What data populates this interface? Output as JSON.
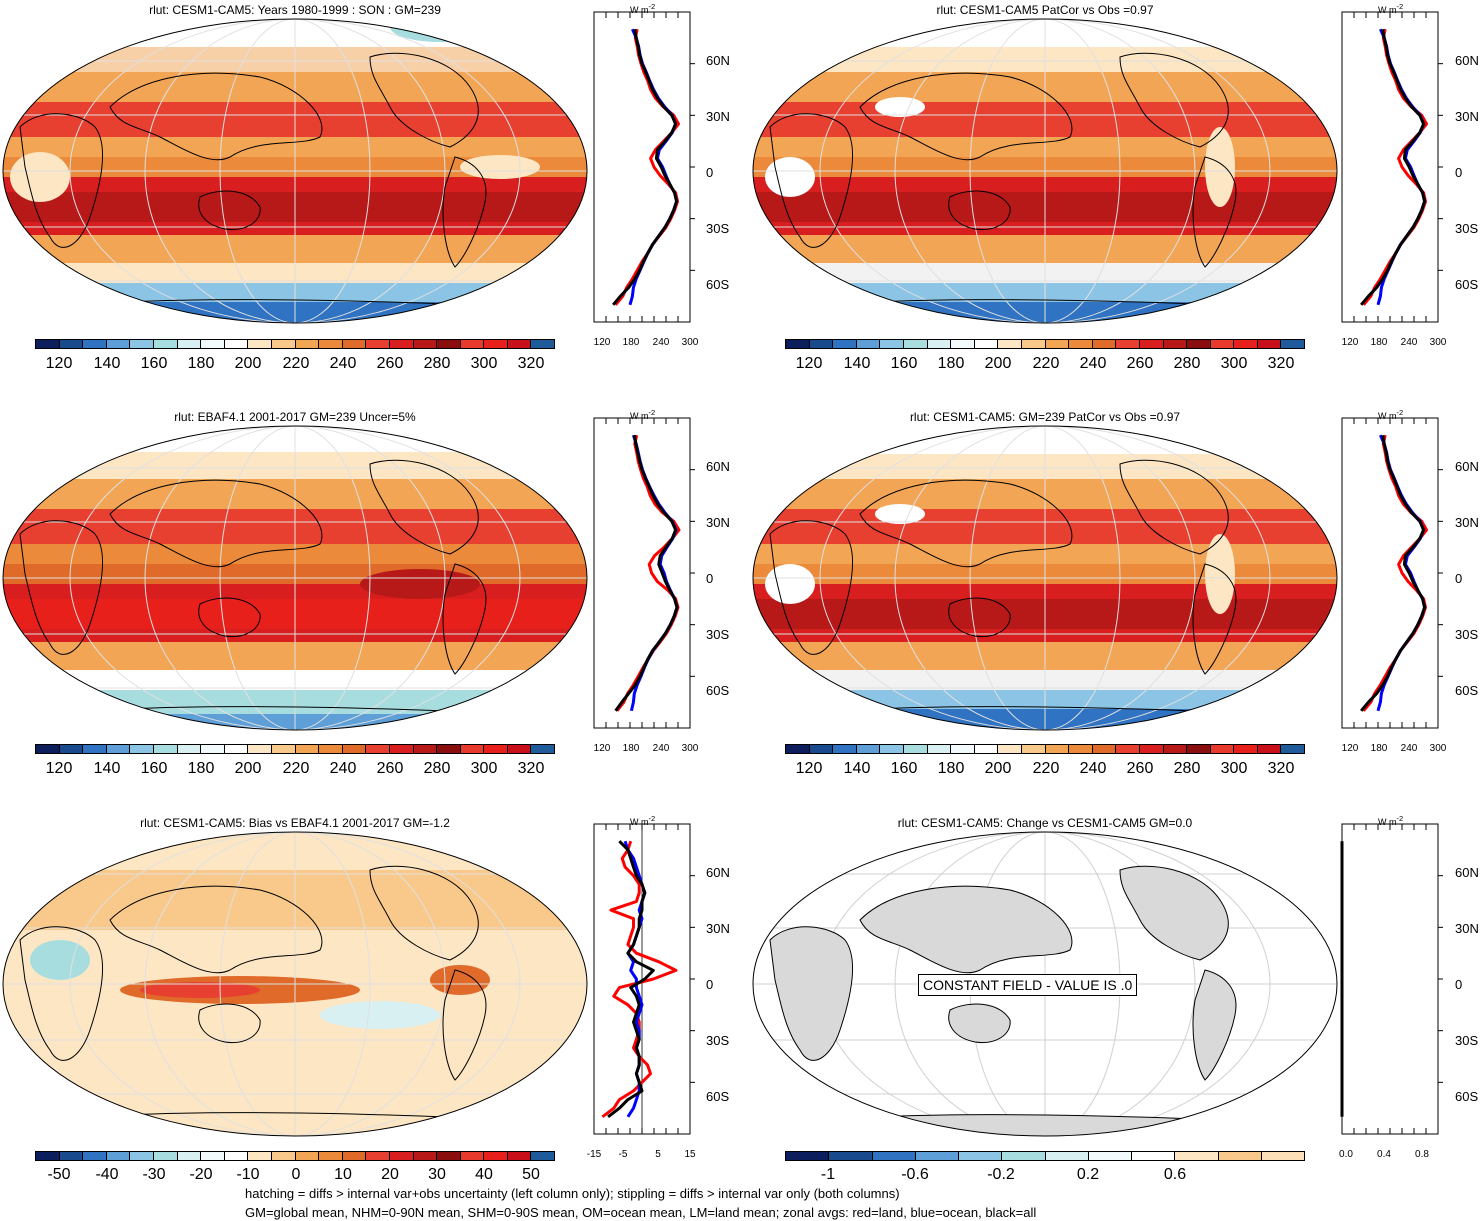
{
  "panels": [
    {
      "title": "rlut: CESM1-CAM5: Years 1980-1999 : SON : GM=239"
    },
    {
      "title": "rlut: CESM1-CAM5 PatCor vs Obs =0.97"
    },
    {
      "title": "rlut: EBAF4.1 2001-2017 GM=239 Uncer=5%"
    },
    {
      "title": "rlut: CESM1-CAM5: GM=239 PatCor vs Obs =0.97"
    },
    {
      "title": "rlut: CESM1-CAM5: Bias vs EBAF4.1 2001-2017  GM=-1.2"
    },
    {
      "title": "rlut: CESM1-CAM5: Change vs CESM1-CAM5 GM=0.0"
    }
  ],
  "colorbars": {
    "abs": {
      "colors": [
        "#0c1f5c",
        "#1a4a8e",
        "#2f73c2",
        "#5e9fd8",
        "#8cc4e6",
        "#a8dde0",
        "#d8f0f2",
        "#f2fafb",
        "#ffffff",
        "#fce6c4",
        "#f8c98a",
        "#f2a555",
        "#ea8a3a",
        "#e06a2a",
        "#e84030",
        "#d81e1e",
        "#b71818",
        "#8a0e0e",
        "#e83a2c",
        "#e8201c",
        "#c8101a",
        "#1f5a9a"
      ],
      "labels": [
        "120",
        "140",
        "160",
        "180",
        "200",
        "220",
        "240",
        "260",
        "280",
        "300",
        "320"
      ]
    },
    "bias": {
      "colors": [
        "#0c1f5c",
        "#1a4a8e",
        "#2f73c2",
        "#5e9fd8",
        "#8cc4e6",
        "#a8dde0",
        "#d8f0f2",
        "#f2fafb",
        "#ffffff",
        "#fce6c4",
        "#f8c98a",
        "#f2a555",
        "#ea8a3a",
        "#e06a2a",
        "#e84030",
        "#d81e1e",
        "#b71818",
        "#8a0e0e",
        "#e83a2c",
        "#e8201c",
        "#c8101a",
        "#1f5a9a"
      ],
      "labels": [
        "-50",
        "-40",
        "-30",
        "-20",
        "-10",
        "0",
        "10",
        "20",
        "30",
        "40",
        "50"
      ]
    },
    "change": {
      "colors": [
        "#0c1f5c",
        "#1a4a8e",
        "#2f73c2",
        "#5e9fd8",
        "#8cc4e6",
        "#a8dde0",
        "#d8f0f2",
        "#f2fafb",
        "#ffffff",
        "#fce6c4",
        "#f8c98a",
        "#fce0b8"
      ],
      "labels": [
        "-1",
        "-0.6",
        "-0.2",
        "0.2",
        "0.6"
      ]
    }
  },
  "zonal": {
    "unit": "W m",
    "unit_sup": "-2",
    "lat_labels": [
      "60N",
      "30N",
      "0",
      "30S",
      "60S"
    ],
    "abs_x_labels": [
      "120",
      "180",
      "240",
      "300"
    ],
    "bias_x_labels": [
      "-15",
      "-5",
      "5",
      "15"
    ],
    "change_x_labels": [
      "0.0",
      "0.4",
      "0.8"
    ]
  },
  "chart_data": [
    {
      "type": "line",
      "title": "rlut: CESM1-CAM5: Years 1980-1999 : SON : GM=239 (zonal avg)",
      "xlim": [
        100,
        300
      ],
      "ylim": [
        -90,
        90
      ],
      "y": [
        -80,
        -75,
        -70,
        -65,
        -60,
        -55,
        -50,
        -45,
        -40,
        -35,
        -30,
        -25,
        -20,
        -15,
        -10,
        -5,
        0,
        5,
        10,
        15,
        20,
        25,
        30,
        35,
        40,
        45,
        50,
        55,
        60,
        65,
        70,
        75,
        80
      ],
      "series": [
        {
          "name": "all",
          "color": "#000000",
          "values": [
            140,
            155,
            172,
            185,
            195,
            203,
            212,
            222,
            235,
            248,
            258,
            266,
            272,
            268,
            258,
            248,
            240,
            230,
            232,
            248,
            262,
            270,
            262,
            245,
            232,
            222,
            215,
            208,
            200,
            195,
            192,
            188,
            185
          ]
        },
        {
          "name": "ocean",
          "color": "#0000ff",
          "values": [
            175,
            180,
            182,
            188,
            196,
            204,
            212,
            222,
            235,
            248,
            258,
            266,
            272,
            268,
            258,
            250,
            243,
            232,
            236,
            250,
            263,
            270,
            263,
            247,
            234,
            224,
            216,
            209,
            201,
            196,
            193,
            188,
            180
          ]
        },
        {
          "name": "land",
          "color": "#ff0000",
          "values": [
            145,
            160,
            168,
            180,
            190,
            200,
            212,
            222,
            236,
            250,
            260,
            268,
            274,
            270,
            255,
            238,
            225,
            218,
            228,
            245,
            262,
            276,
            266,
            244,
            228,
            218,
            212,
            204,
            198,
            193,
            190,
            186,
            190
          ]
        }
      ]
    },
    {
      "type": "line",
      "title": "rlut: CESM1-CAM5 PatCor vs Obs =0.97 (zonal avg)",
      "xlim": [
        100,
        300
      ],
      "ylim": [
        -90,
        90
      ],
      "y": [
        -80,
        -75,
        -70,
        -65,
        -60,
        -55,
        -50,
        -45,
        -40,
        -35,
        -30,
        -25,
        -20,
        -15,
        -10,
        -5,
        0,
        5,
        10,
        15,
        20,
        25,
        30,
        35,
        40,
        45,
        50,
        55,
        60,
        65,
        70,
        75,
        80
      ],
      "series": [
        {
          "name": "all",
          "color": "#000000",
          "values": [
            140,
            155,
            172,
            185,
            195,
            203,
            212,
            222,
            235,
            248,
            258,
            266,
            272,
            268,
            258,
            248,
            240,
            230,
            232,
            248,
            262,
            270,
            262,
            245,
            232,
            222,
            215,
            208,
            200,
            195,
            192,
            188,
            185
          ]
        },
        {
          "name": "ocean",
          "color": "#0000ff",
          "values": [
            175,
            180,
            182,
            188,
            196,
            204,
            212,
            222,
            235,
            248,
            258,
            266,
            272,
            268,
            258,
            250,
            243,
            232,
            236,
            250,
            263,
            270,
            263,
            247,
            234,
            224,
            216,
            209,
            201,
            196,
            193,
            188,
            180
          ]
        },
        {
          "name": "land",
          "color": "#ff0000",
          "values": [
            145,
            160,
            168,
            180,
            190,
            200,
            212,
            222,
            236,
            250,
            260,
            268,
            274,
            270,
            255,
            238,
            225,
            218,
            228,
            245,
            262,
            276,
            266,
            244,
            228,
            218,
            212,
            204,
            198,
            193,
            190,
            186,
            190
          ]
        }
      ]
    },
    {
      "type": "line",
      "title": "rlut: EBAF4.1 2001-2017 GM=239 Uncer=5% (zonal avg)",
      "xlim": [
        100,
        300
      ],
      "ylim": [
        -90,
        90
      ],
      "y": [
        -80,
        -75,
        -70,
        -65,
        -60,
        -55,
        -50,
        -45,
        -40,
        -35,
        -30,
        -25,
        -20,
        -15,
        -10,
        -5,
        0,
        5,
        10,
        15,
        20,
        25,
        30,
        35,
        40,
        45,
        50,
        55,
        60,
        65,
        70,
        75,
        80
      ],
      "series": [
        {
          "name": "all",
          "color": "#000000",
          "values": [
            145,
            158,
            172,
            186,
            196,
            204,
            212,
            222,
            236,
            249,
            259,
            267,
            273,
            268,
            258,
            249,
            242,
            235,
            238,
            250,
            263,
            270,
            262,
            246,
            233,
            223,
            215,
            207,
            200,
            195,
            191,
            187,
            184
          ]
        },
        {
          "name": "ocean",
          "color": "#0000ff",
          "values": [
            178,
            182,
            184,
            190,
            198,
            205,
            213,
            223,
            236,
            249,
            259,
            267,
            273,
            268,
            259,
            251,
            246,
            238,
            241,
            252,
            264,
            271,
            263,
            248,
            235,
            225,
            216,
            208,
            201,
            196,
            192,
            188,
            182
          ]
        },
        {
          "name": "land",
          "color": "#ff0000",
          "values": [
            148,
            162,
            170,
            182,
            192,
            202,
            213,
            224,
            238,
            251,
            261,
            269,
            275,
            270,
            254,
            232,
            220,
            215,
            226,
            246,
            263,
            277,
            266,
            243,
            227,
            217,
            211,
            203,
            197,
            192,
            189,
            185,
            189
          ]
        }
      ]
    },
    {
      "type": "line",
      "title": "rlut: CESM1-CAM5: GM=239 PatCor vs Obs =0.97 (zonal avg)",
      "xlim": [
        100,
        300
      ],
      "ylim": [
        -90,
        90
      ],
      "y": [
        -80,
        -75,
        -70,
        -65,
        -60,
        -55,
        -50,
        -45,
        -40,
        -35,
        -30,
        -25,
        -20,
        -15,
        -10,
        -5,
        0,
        5,
        10,
        15,
        20,
        25,
        30,
        35,
        40,
        45,
        50,
        55,
        60,
        65,
        70,
        75,
        80
      ],
      "series": [
        {
          "name": "all",
          "color": "#000000",
          "values": [
            140,
            155,
            172,
            185,
            195,
            203,
            212,
            222,
            235,
            248,
            258,
            266,
            272,
            268,
            258,
            248,
            240,
            230,
            232,
            248,
            262,
            270,
            262,
            245,
            232,
            222,
            215,
            208,
            200,
            195,
            192,
            188,
            185
          ]
        },
        {
          "name": "ocean",
          "color": "#0000ff",
          "values": [
            175,
            180,
            182,
            188,
            196,
            204,
            212,
            222,
            235,
            248,
            258,
            266,
            272,
            268,
            258,
            250,
            243,
            232,
            236,
            250,
            263,
            270,
            263,
            247,
            234,
            224,
            216,
            209,
            201,
            196,
            193,
            188,
            180
          ]
        },
        {
          "name": "land",
          "color": "#ff0000",
          "values": [
            145,
            160,
            168,
            180,
            190,
            200,
            212,
            222,
            236,
            250,
            260,
            268,
            274,
            270,
            255,
            238,
            225,
            218,
            228,
            245,
            262,
            276,
            266,
            244,
            228,
            218,
            212,
            204,
            198,
            193,
            190,
            186,
            190
          ]
        }
      ]
    },
    {
      "type": "line",
      "title": "rlut: CESM1-CAM5: Bias vs EBAF4.1 2001-2017  GM=-1.2 (zonal avg)",
      "xlim": [
        -17,
        17
      ],
      "ylim": [
        -90,
        90
      ],
      "y": [
        -80,
        -75,
        -70,
        -65,
        -60,
        -55,
        -50,
        -45,
        -40,
        -35,
        -30,
        -25,
        -20,
        -15,
        -10,
        -5,
        0,
        5,
        10,
        15,
        20,
        25,
        30,
        35,
        40,
        45,
        50,
        55,
        60,
        65,
        70,
        75,
        80
      ],
      "series": [
        {
          "name": "all",
          "color": "#000000",
          "values": [
            -12,
            -8,
            -5,
            0,
            -1,
            -2,
            -1,
            -1,
            -2,
            -1,
            -2,
            -3,
            -2,
            -1,
            -2,
            -4,
            1,
            4,
            -2,
            -5,
            -3,
            -2,
            -1,
            -1,
            0,
            0,
            1,
            0,
            -2,
            -3,
            -4,
            -5,
            -8
          ]
        },
        {
          "name": "ocean",
          "color": "#0000ff",
          "values": [
            -5,
            -3,
            -2,
            -1,
            -1,
            -2,
            -1,
            -1,
            -2,
            -1,
            -1,
            -2,
            -1,
            0,
            -1,
            -2,
            -2,
            -4,
            -3,
            -5,
            -3,
            -2,
            -1,
            0,
            -1,
            0,
            1,
            0,
            -1,
            -2,
            -3,
            -5,
            -6
          ]
        },
        {
          "name": "land",
          "color": "#ff0000",
          "values": [
            -14,
            -10,
            -8,
            -3,
            0,
            3,
            2,
            -1,
            -3,
            -2,
            -1,
            -1,
            -2,
            -5,
            -10,
            -8,
            4,
            12,
            6,
            -2,
            -5,
            -4,
            -3,
            -3,
            -11,
            -2,
            -1,
            -1,
            -3,
            -6,
            -7,
            -5,
            -4
          ]
        }
      ]
    },
    {
      "type": "line",
      "title": "rlut: CESM1-CAM5: Change vs CESM1-CAM5 GM=0.0 (zonal avg)",
      "xlim": [
        0,
        1
      ],
      "ylim": [
        -90,
        90
      ],
      "y": [
        -80,
        80
      ],
      "series": [
        {
          "name": "all",
          "color": "#000000",
          "values": [
            0,
            0
          ]
        }
      ]
    }
  ],
  "const_label": "CONSTANT FIELD - VALUE IS .0",
  "footer": {
    "line1": "hatching = diffs > internal var+obs uncertainty (left column only); stippling = diffs > internal var only (both columns)",
    "line2": "GM=global mean, NHM=0-90N mean, SHM=0-90S mean, OM=ocean mean, LM=land mean; zonal avgs: red=land, blue=ocean, black=all"
  },
  "colors": {
    "ocean_gray": "#d9d9d9",
    "land_line": "#000000",
    "grid": "#d0d0d0"
  }
}
